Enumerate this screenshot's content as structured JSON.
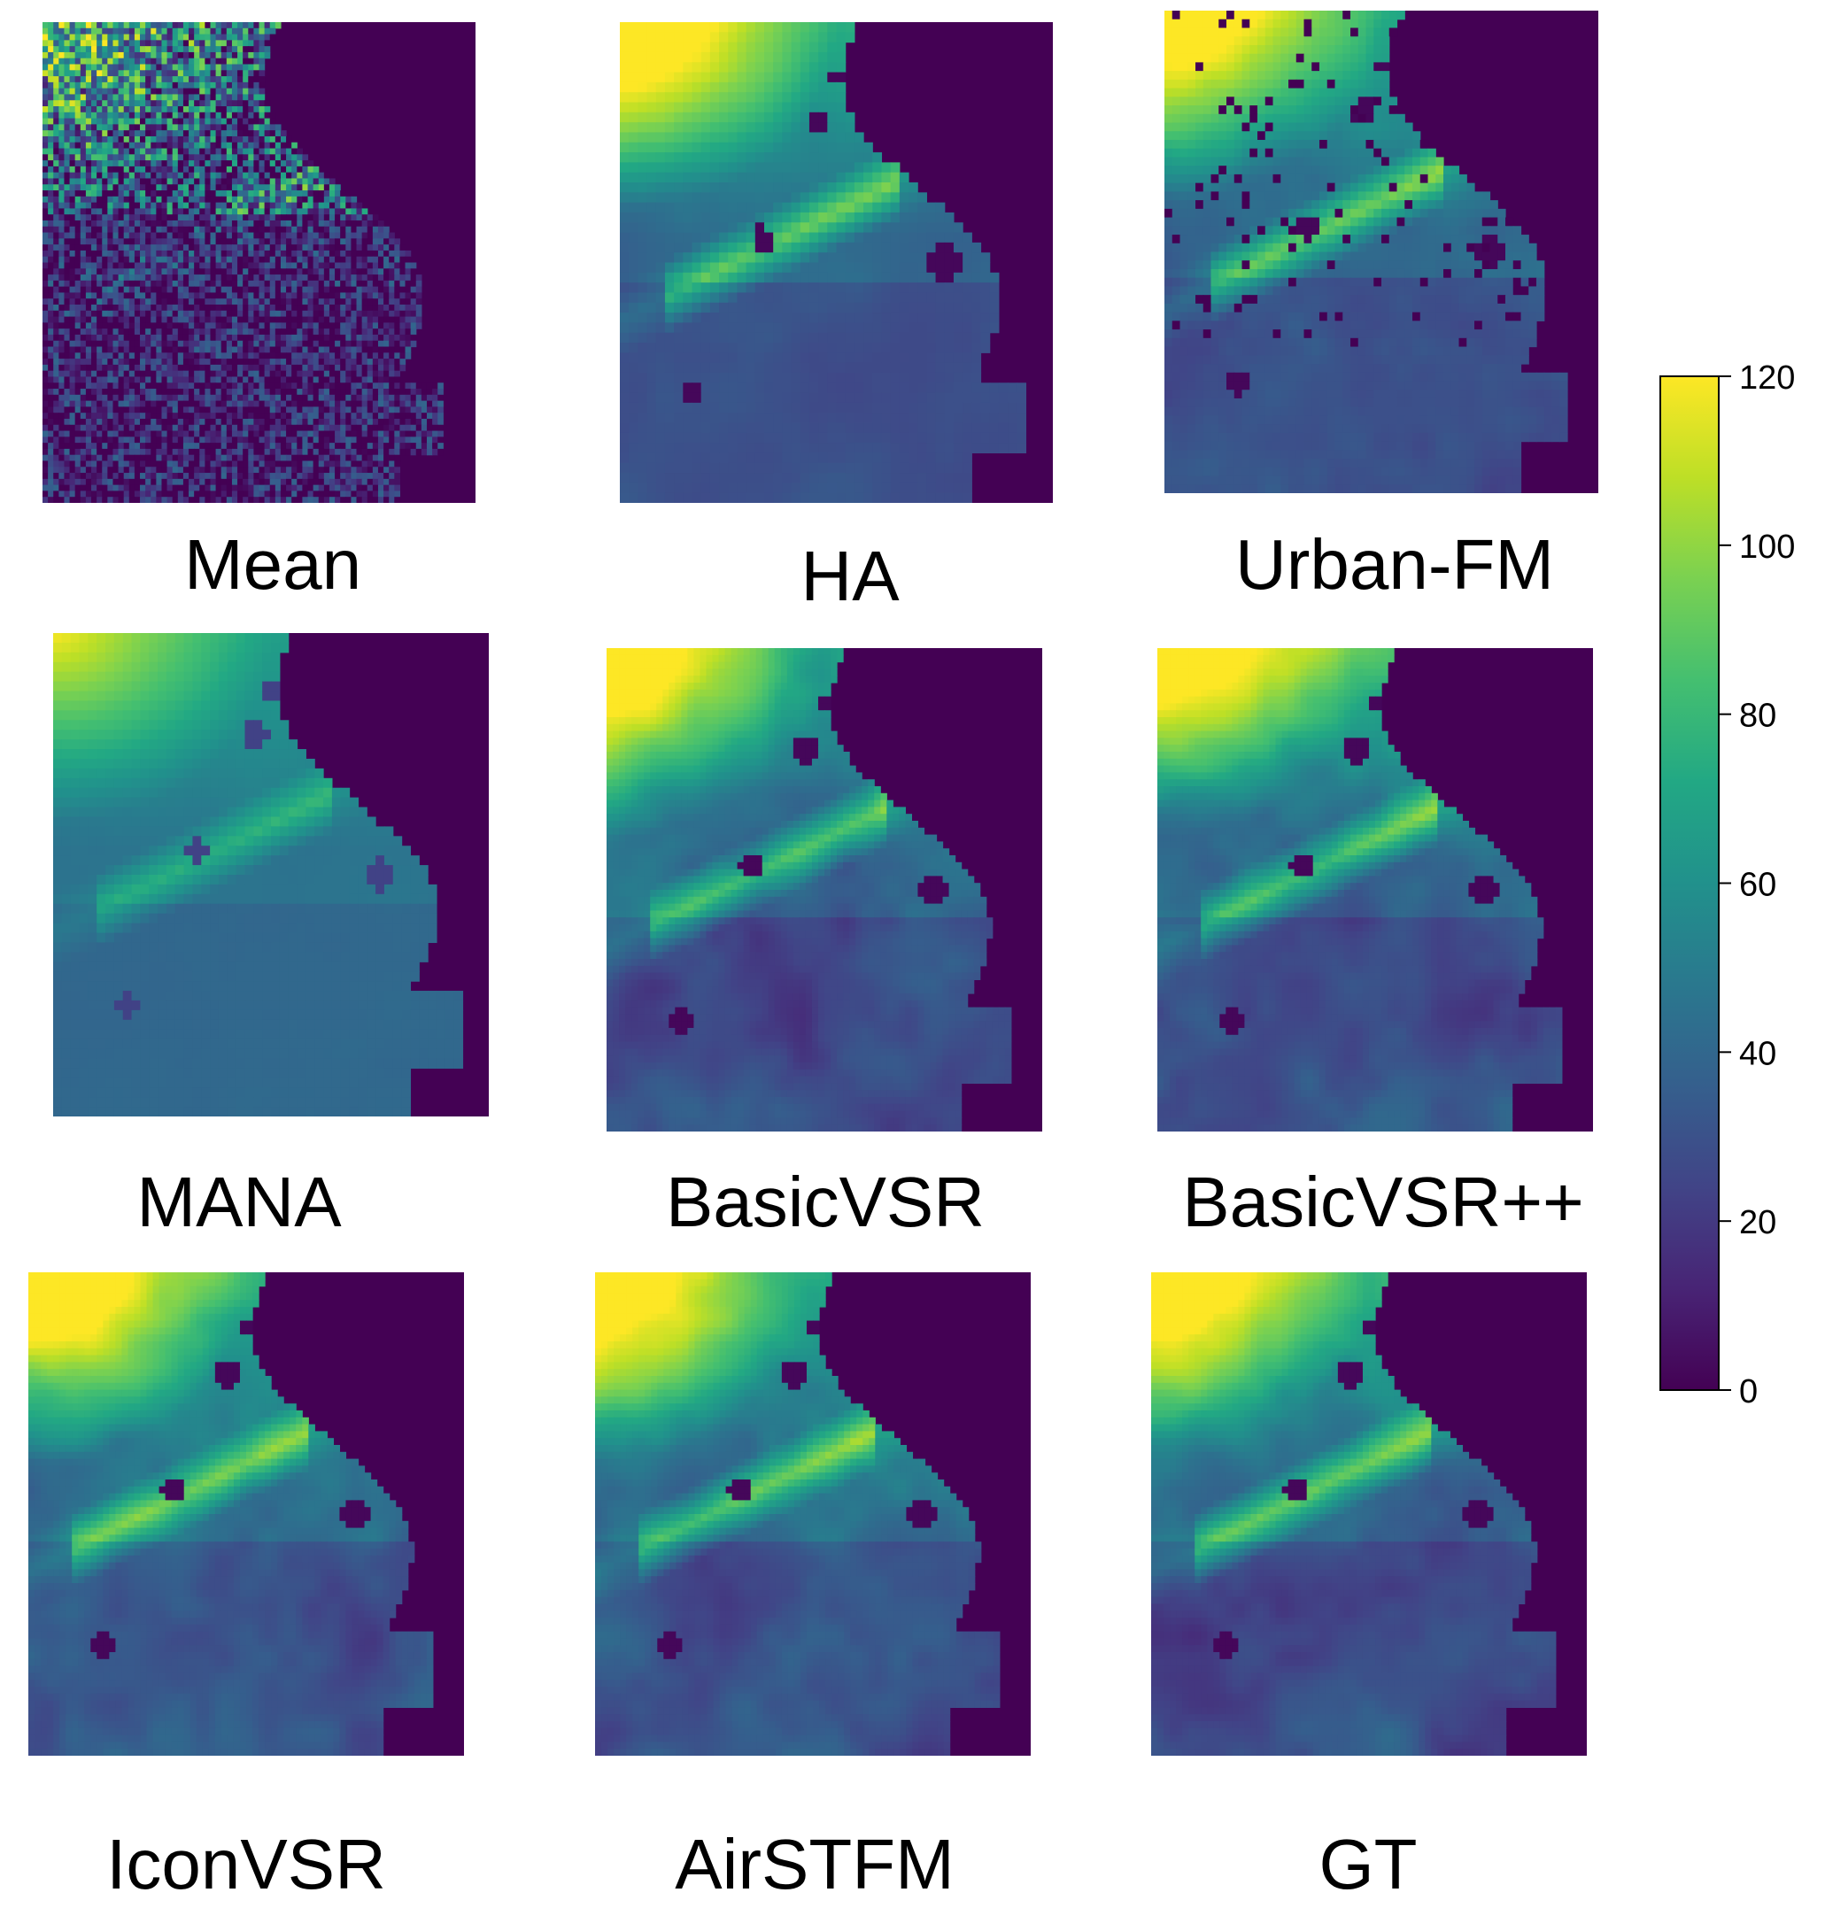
{
  "chart_data": {
    "type": "heatmap",
    "title": "",
    "panels": [
      {
        "id": "mean",
        "label": "Mean",
        "style": "noisy"
      },
      {
        "id": "ha",
        "label": "HA",
        "style": "blurry"
      },
      {
        "id": "urban_fm",
        "label": "Urban-FM",
        "style": "blocky"
      },
      {
        "id": "mana",
        "label": "MANA",
        "style": "smooth"
      },
      {
        "id": "basicvsr",
        "label": "BasicVSR",
        "style": "detailed"
      },
      {
        "id": "basicvsrpp",
        "label": "BasicVSR++",
        "style": "detailed"
      },
      {
        "id": "iconvsr",
        "label": "IconVSR",
        "style": "detailed"
      },
      {
        "id": "airstfm",
        "label": "AirSTFM",
        "style": "detailed"
      },
      {
        "id": "gt",
        "label": "GT",
        "style": "detailed"
      }
    ],
    "colorbar": {
      "colormap": "viridis",
      "range": [
        0,
        120
      ],
      "ticks": [
        0,
        20,
        40,
        60,
        80,
        100,
        120
      ],
      "tick_labels": [
        "0",
        "20",
        "40",
        "60",
        "80",
        "100",
        "120"
      ]
    },
    "colors": {
      "low": "#440154",
      "mid": "#21918c",
      "high": "#fde725"
    }
  }
}
